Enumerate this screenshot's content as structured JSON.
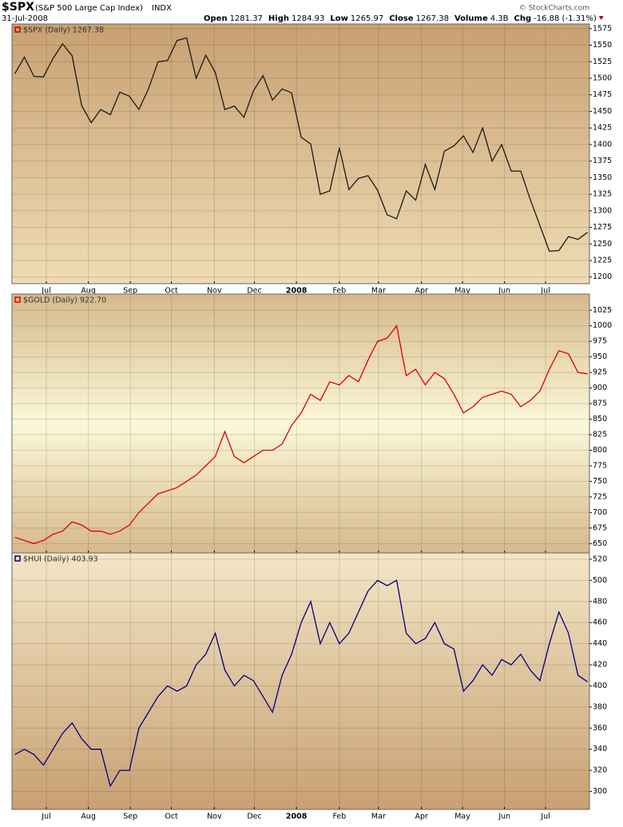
{
  "header": {
    "symbol": "$SPX",
    "name": "(S&P 500 Large Cap Index)",
    "exchange": "INDX",
    "date": "31-Jul-2008",
    "quote": [
      [
        "Open",
        "1281.37"
      ],
      [
        "High",
        "1284.93"
      ],
      [
        "Low",
        "1265.97"
      ],
      [
        "Close",
        "1267.38"
      ],
      [
        "Volume",
        "4.3B"
      ],
      [
        "Chg",
        "-16.88 (-1.31%)"
      ]
    ],
    "credit": "© StockCharts.com"
  },
  "chart_data": [
    {
      "type": "line",
      "grid": true,
      "x": [
        0,
        1,
        2,
        3,
        4,
        5,
        6,
        7,
        8,
        9,
        10,
        11,
        12,
        13,
        14,
        15,
        16,
        17,
        18,
        19,
        20,
        21,
        22,
        23,
        24,
        25,
        26,
        27,
        28,
        29,
        30,
        31,
        32,
        33,
        34,
        35,
        36,
        37,
        38,
        39,
        40,
        41,
        42,
        43,
        44,
        45,
        46,
        47,
        48,
        49,
        50,
        51,
        52,
        53,
        54,
        55,
        56,
        57,
        58,
        59,
        60
      ],
      "xlim": [
        -0.3,
        60.2
      ],
      "xticks": [
        {
          "value": 3.3,
          "label": "Jul"
        },
        {
          "value": 7.7,
          "label": "Aug"
        },
        {
          "value": 12.1,
          "label": "Sep"
        },
        {
          "value": 16.4,
          "label": "Oct"
        },
        {
          "value": 20.9,
          "label": "Nov"
        },
        {
          "value": 25.1,
          "label": "Dec"
        },
        {
          "value": 29.5,
          "label": "2008"
        },
        {
          "value": 34.0,
          "label": "Feb"
        },
        {
          "value": 38.1,
          "label": "Mar"
        },
        {
          "value": 42.6,
          "label": "Apr"
        },
        {
          "value": 46.9,
          "label": "May"
        },
        {
          "value": 51.3,
          "label": "Jun"
        },
        {
          "value": 55.6,
          "label": "Jul"
        }
      ],
      "xtick_labels": true,
      "ylim": [
        1190,
        1582
      ],
      "yticks": [
        1200,
        1225,
        1250,
        1275,
        1300,
        1325,
        1350,
        1375,
        1400,
        1425,
        1450,
        1475,
        1500,
        1525,
        1550,
        1575
      ],
      "background": [
        "#c8a072",
        "#efdcb4"
      ],
      "series": [
        {
          "name": "$SPX (Daily) 1267.38",
          "color": "#1a1a1a",
          "legend_color": "#cc0000",
          "values": [
            1507,
            1532,
            1503,
            1502,
            1530,
            1552,
            1534,
            1459,
            1433,
            1453,
            1445,
            1479,
            1473,
            1453,
            1484,
            1525,
            1527,
            1557,
            1561,
            1500,
            1535,
            1509,
            1453,
            1458,
            1441,
            1481,
            1504,
            1467,
            1484,
            1478,
            1411,
            1401,
            1325,
            1330,
            1395,
            1332,
            1349,
            1353,
            1331,
            1294,
            1288,
            1330,
            1316,
            1370,
            1332,
            1390,
            1398,
            1413,
            1388,
            1425,
            1375,
            1400,
            1360,
            1360,
            1317,
            1278,
            1239,
            1240,
            1261,
            1257,
            1267.38
          ]
        }
      ]
    },
    {
      "type": "line",
      "grid": true,
      "x": [
        0,
        1,
        2,
        3,
        4,
        5,
        6,
        7,
        8,
        9,
        10,
        11,
        12,
        13,
        14,
        15,
        16,
        17,
        18,
        19,
        20,
        21,
        22,
        23,
        24,
        25,
        26,
        27,
        28,
        29,
        30,
        31,
        32,
        33,
        34,
        35,
        36,
        37,
        38,
        39,
        40,
        41,
        42,
        43,
        44,
        45,
        46,
        47,
        48,
        49,
        50,
        51,
        52,
        53,
        54,
        55,
        56,
        57,
        58,
        59,
        60
      ],
      "xlim": [
        -0.3,
        60.2
      ],
      "xticks": [
        3.3,
        7.7,
        12.1,
        16.4,
        20.9,
        25.1,
        29.5,
        34.0,
        38.1,
        42.6,
        46.9,
        51.3,
        55.6
      ],
      "xtick_labels": false,
      "ylim": [
        635,
        1051
      ],
      "yticks": [
        650,
        675,
        700,
        725,
        750,
        775,
        800,
        825,
        850,
        875,
        900,
        925,
        950,
        975,
        1000,
        1025
      ],
      "background": [
        "#d6b98c",
        "#fbf8d9",
        "#d6b98c"
      ],
      "series": [
        {
          "name": "$GOLD (Daily) 922.70",
          "color": "#e00000",
          "legend_color": "#e00000",
          "values": [
            660,
            655,
            650,
            655,
            665,
            670,
            685,
            680,
            670,
            670,
            665,
            670,
            680,
            700,
            715,
            730,
            735,
            740,
            750,
            760,
            775,
            790,
            830,
            790,
            780,
            790,
            800,
            800,
            810,
            840,
            860,
            890,
            880,
            910,
            905,
            920,
            910,
            945,
            975,
            980,
            1000,
            920,
            930,
            905,
            925,
            915,
            890,
            860,
            870,
            885,
            890,
            895,
            890,
            870,
            880,
            895,
            930,
            960,
            955,
            925,
            922.7
          ]
        }
      ]
    },
    {
      "type": "line",
      "grid": true,
      "x": [
        0,
        1,
        2,
        3,
        4,
        5,
        6,
        7,
        8,
        9,
        10,
        11,
        12,
        13,
        14,
        15,
        16,
        17,
        18,
        19,
        20,
        21,
        22,
        23,
        24,
        25,
        26,
        27,
        28,
        29,
        30,
        31,
        32,
        33,
        34,
        35,
        36,
        37,
        38,
        39,
        40,
        41,
        42,
        43,
        44,
        45,
        46,
        47,
        48,
        49,
        50,
        51,
        52,
        53,
        54,
        55,
        56,
        57,
        58,
        59,
        60
      ],
      "xlim": [
        -0.3,
        60.2
      ],
      "xticks": [
        {
          "value": 3.3,
          "label": "Jul"
        },
        {
          "value": 7.7,
          "label": "Aug"
        },
        {
          "value": 12.1,
          "label": "Sep"
        },
        {
          "value": 16.4,
          "label": "Oct"
        },
        {
          "value": 20.9,
          "label": "Nov"
        },
        {
          "value": 25.1,
          "label": "Dec"
        },
        {
          "value": 29.5,
          "label": "2008"
        },
        {
          "value": 34.0,
          "label": "Feb"
        },
        {
          "value": 38.1,
          "label": "Mar"
        },
        {
          "value": 42.6,
          "label": "Apr"
        },
        {
          "value": 46.9,
          "label": "May"
        },
        {
          "value": 51.3,
          "label": "Jun"
        },
        {
          "value": 55.6,
          "label": "Jul"
        }
      ],
      "xtick_labels": true,
      "ylim": [
        283,
        526
      ],
      "yticks": [
        300,
        320,
        340,
        360,
        380,
        400,
        420,
        440,
        460,
        480,
        500,
        520
      ],
      "background": [
        "#f3e6c6",
        "#c8a072"
      ],
      "series": [
        {
          "name": "$HUI (Daily) 403.93",
          "color": "#000080",
          "legend_color": "#000080",
          "values": [
            335,
            340,
            335,
            325,
            340,
            355,
            365,
            350,
            340,
            340,
            305,
            320,
            320,
            360,
            375,
            390,
            400,
            395,
            400,
            420,
            430,
            450,
            415,
            400,
            410,
            405,
            390,
            375,
            410,
            430,
            460,
            480,
            440,
            460,
            440,
            450,
            470,
            490,
            500,
            495,
            500,
            450,
            440,
            445,
            460,
            440,
            435,
            395,
            405,
            420,
            410,
            425,
            420,
            430,
            415,
            405,
            440,
            470,
            450,
            410,
            403.93
          ]
        }
      ]
    }
  ]
}
